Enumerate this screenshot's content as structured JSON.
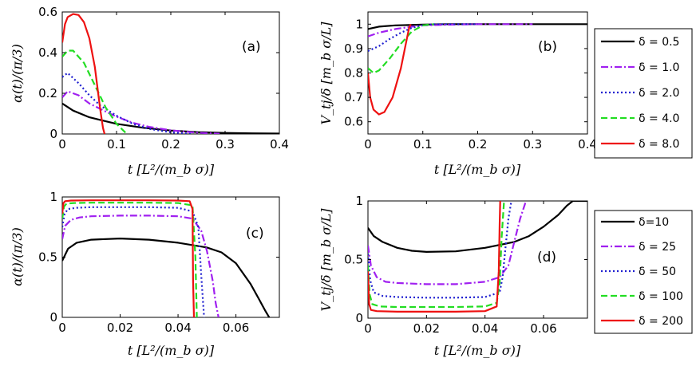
{
  "chart_data": [
    {
      "panel": "(a)",
      "type": "line",
      "xlabel": "t   [L²/(m_b σ)]",
      "ylabel": "α(t)/(π/3)",
      "xlim": [
        0,
        0.4
      ],
      "ylim": [
        0,
        0.6
      ],
      "xticks": [
        0,
        0.1,
        0.2,
        0.3,
        0.4
      ],
      "xtick_labels": [
        "0",
        "0.1",
        "0.2",
        "0.3",
        "0.4"
      ],
      "yticks": [
        0,
        0.2,
        0.4,
        0.6
      ],
      "ytick_labels": [
        "0",
        "0.2",
        "0.4",
        "0.6"
      ],
      "series": [
        {
          "name": "δ = 0.5",
          "color": "#000000",
          "dash": "",
          "x": [
            0,
            0.02,
            0.05,
            0.1,
            0.15,
            0.2,
            0.25,
            0.3,
            0.35,
            0.4
          ],
          "y": [
            0.15,
            0.115,
            0.082,
            0.05,
            0.03,
            0.017,
            0.009,
            0.005,
            0.003,
            0.002
          ]
        },
        {
          "name": "δ = 1.0",
          "color": "#a020f0",
          "dash": "9,3,2,3",
          "x": [
            0,
            0.01,
            0.03,
            0.05,
            0.08,
            0.1,
            0.13,
            0.16,
            0.2,
            0.25,
            0.29
          ],
          "y": [
            0.18,
            0.21,
            0.19,
            0.15,
            0.11,
            0.085,
            0.055,
            0.035,
            0.018,
            0.006,
            0.001
          ]
        },
        {
          "name": "δ = 2.0",
          "color": "#1f1fd0",
          "dash": "2,3",
          "x": [
            0,
            0.01,
            0.03,
            0.05,
            0.07,
            0.1,
            0.13,
            0.16,
            0.2,
            0.24
          ],
          "y": [
            0.28,
            0.3,
            0.25,
            0.19,
            0.14,
            0.09,
            0.05,
            0.025,
            0.008,
            0.0
          ]
        },
        {
          "name": "δ = 4.0",
          "color": "#22dd22",
          "dash": "8,4",
          "x": [
            0,
            0.01,
            0.02,
            0.04,
            0.06,
            0.08,
            0.1,
            0.115,
            0.12
          ],
          "y": [
            0.38,
            0.41,
            0.41,
            0.35,
            0.24,
            0.13,
            0.05,
            0.01,
            0.0
          ]
        },
        {
          "name": "δ = 8.0",
          "color": "#ee1111",
          "dash": "",
          "x": [
            0,
            0.005,
            0.01,
            0.02,
            0.03,
            0.04,
            0.05,
            0.06,
            0.07,
            0.075,
            0.078
          ],
          "y": [
            0.45,
            0.54,
            0.575,
            0.59,
            0.585,
            0.55,
            0.47,
            0.33,
            0.12,
            0.03,
            0.0
          ]
        }
      ]
    },
    {
      "panel": "(b)",
      "type": "line",
      "xlabel": "t   [L²/(m_b σ)]",
      "ylabel": "V_tj/δ   [m_b σ/L]",
      "xlim": [
        0,
        0.4
      ],
      "ylim": [
        0.55,
        1.05
      ],
      "xticks": [
        0,
        0.1,
        0.2,
        0.3,
        0.4
      ],
      "xtick_labels": [
        "0",
        "0.1",
        "0.2",
        "0.3",
        "0.4"
      ],
      "yticks": [
        0.6,
        0.7,
        0.8,
        0.9,
        1.0
      ],
      "ytick_labels": [
        "0.6",
        "0.7",
        "0.8",
        "0.9",
        "1"
      ],
      "series": [
        {
          "name": "δ = 0.5",
          "color": "#000000",
          "dash": "",
          "x": [
            0,
            0.02,
            0.05,
            0.1,
            0.15,
            0.2,
            0.4
          ],
          "y": [
            0.98,
            0.99,
            0.995,
            0.998,
            1.0,
            1.0,
            1.0
          ]
        },
        {
          "name": "δ = 1.0",
          "color": "#a020f0",
          "dash": "9,3,2,3",
          "x": [
            0,
            0.02,
            0.05,
            0.08,
            0.1,
            0.15,
            0.2,
            0.3
          ],
          "y": [
            0.95,
            0.965,
            0.98,
            0.99,
            0.995,
            0.998,
            1.0,
            1.0
          ]
        },
        {
          "name": "δ = 2.0",
          "color": "#1f1fd0",
          "dash": "2,3",
          "x": [
            0,
            0.02,
            0.04,
            0.06,
            0.08,
            0.1,
            0.12,
            0.2
          ],
          "y": [
            0.89,
            0.91,
            0.94,
            0.965,
            0.985,
            0.995,
            1.0,
            1.0
          ]
        },
        {
          "name": "δ = 4.0",
          "color": "#22dd22",
          "dash": "8,4",
          "x": [
            0,
            0.01,
            0.02,
            0.04,
            0.06,
            0.08,
            0.1,
            0.12
          ],
          "y": [
            0.82,
            0.8,
            0.81,
            0.86,
            0.92,
            0.97,
            0.995,
            1.0
          ]
        },
        {
          "name": "δ = 8.0",
          "color": "#ee1111",
          "dash": "",
          "x": [
            0,
            0.004,
            0.01,
            0.02,
            0.03,
            0.045,
            0.06,
            0.07,
            0.075,
            0.078
          ],
          "y": [
            0.8,
            0.7,
            0.65,
            0.63,
            0.64,
            0.7,
            0.82,
            0.93,
            0.985,
            1.0
          ]
        }
      ]
    },
    {
      "panel": "(c)",
      "type": "line",
      "xlabel": "t   [L²/(m_b σ)]",
      "ylabel": "α(t)/(π/3)",
      "xlim": [
        0,
        0.075
      ],
      "ylim": [
        0,
        1.0
      ],
      "xticks": [
        0,
        0.02,
        0.04,
        0.06
      ],
      "xtick_labels": [
        "0",
        "0.02",
        "0.04",
        "0.06"
      ],
      "yticks": [
        0,
        0.5,
        1.0
      ],
      "ytick_labels": [
        "0",
        "0.5",
        "1"
      ],
      "series": [
        {
          "name": "δ=10",
          "color": "#000000",
          "dash": "",
          "x": [
            0,
            0.002,
            0.005,
            0.01,
            0.02,
            0.03,
            0.04,
            0.05,
            0.055,
            0.06,
            0.065,
            0.068,
            0.07,
            0.0715
          ],
          "y": [
            0.47,
            0.57,
            0.62,
            0.645,
            0.655,
            0.645,
            0.62,
            0.58,
            0.54,
            0.45,
            0.28,
            0.15,
            0.06,
            0.0
          ]
        },
        {
          "name": "δ = 25",
          "color": "#a020f0",
          "dash": "9,3,2,3",
          "x": [
            0,
            0.001,
            0.003,
            0.006,
            0.01,
            0.02,
            0.03,
            0.04,
            0.045,
            0.048,
            0.05,
            0.052,
            0.053,
            0.054
          ],
          "y": [
            0.65,
            0.76,
            0.81,
            0.83,
            0.84,
            0.845,
            0.845,
            0.84,
            0.82,
            0.72,
            0.55,
            0.3,
            0.12,
            0.0
          ]
        },
        {
          "name": "δ = 50",
          "color": "#1f1fd0",
          "dash": "2,3",
          "x": [
            0,
            0.0008,
            0.002,
            0.005,
            0.01,
            0.02,
            0.03,
            0.04,
            0.045,
            0.047,
            0.048,
            0.049
          ],
          "y": [
            0.75,
            0.86,
            0.9,
            0.91,
            0.915,
            0.915,
            0.915,
            0.91,
            0.88,
            0.75,
            0.35,
            0.0
          ]
        },
        {
          "name": "δ = 100",
          "color": "#22dd22",
          "dash": "8,4",
          "x": [
            0,
            0.0006,
            0.0015,
            0.004,
            0.01,
            0.02,
            0.03,
            0.04,
            0.045,
            0.046,
            0.0465
          ],
          "y": [
            0.82,
            0.92,
            0.945,
            0.95,
            0.952,
            0.952,
            0.952,
            0.95,
            0.93,
            0.5,
            0.0
          ]
        },
        {
          "name": "δ = 200",
          "color": "#ee1111",
          "dash": "",
          "x": [
            0,
            0.0004,
            0.001,
            0.003,
            0.01,
            0.02,
            0.03,
            0.04,
            0.044,
            0.045,
            0.0452,
            0.0455
          ],
          "y": [
            0.86,
            0.95,
            0.965,
            0.97,
            0.972,
            0.972,
            0.972,
            0.97,
            0.965,
            0.9,
            0.3,
            0.0
          ]
        }
      ]
    },
    {
      "panel": "(d)",
      "type": "line",
      "xlabel": "t   [L²/(m_b σ)]",
      "ylabel": "V_tj/δ   [m_b σ/L]",
      "xlim": [
        0,
        0.075
      ],
      "ylim": [
        0,
        1.0
      ],
      "xticks": [
        0,
        0.02,
        0.04,
        0.06
      ],
      "xtick_labels": [
        "0",
        "0.02",
        "0.04",
        "0.06"
      ],
      "yticks": [
        0,
        0.5,
        1.0
      ],
      "ytick_labels": [
        "0",
        "0.5",
        "1"
      ],
      "series": [
        {
          "name": "δ=10",
          "color": "#000000",
          "dash": "",
          "x": [
            0,
            0.002,
            0.005,
            0.01,
            0.015,
            0.02,
            0.03,
            0.04,
            0.05,
            0.055,
            0.06,
            0.065,
            0.068,
            0.07,
            0.075
          ],
          "y": [
            0.77,
            0.7,
            0.65,
            0.6,
            0.575,
            0.565,
            0.57,
            0.6,
            0.65,
            0.7,
            0.78,
            0.88,
            0.96,
            1.0,
            1.0
          ]
        },
        {
          "name": "δ = 25",
          "color": "#a020f0",
          "dash": "9,3,2,3",
          "x": [
            0,
            0.001,
            0.003,
            0.006,
            0.01,
            0.02,
            0.03,
            0.04,
            0.045,
            0.048,
            0.05,
            0.052,
            0.054
          ],
          "y": [
            0.62,
            0.45,
            0.35,
            0.31,
            0.3,
            0.29,
            0.29,
            0.31,
            0.35,
            0.45,
            0.65,
            0.85,
            1.0
          ]
        },
        {
          "name": "δ = 50",
          "color": "#1f1fd0",
          "dash": "2,3",
          "x": [
            0,
            0.0008,
            0.002,
            0.005,
            0.01,
            0.02,
            0.03,
            0.04,
            0.045,
            0.046,
            0.047,
            0.048,
            0.049
          ],
          "y": [
            0.55,
            0.32,
            0.22,
            0.19,
            0.18,
            0.175,
            0.175,
            0.18,
            0.22,
            0.35,
            0.6,
            0.85,
            1.0
          ]
        },
        {
          "name": "δ = 100",
          "color": "#22dd22",
          "dash": "8,4",
          "x": [
            0,
            0.0006,
            0.0015,
            0.004,
            0.01,
            0.02,
            0.03,
            0.04,
            0.044,
            0.045,
            0.0457,
            0.0465
          ],
          "y": [
            0.45,
            0.2,
            0.12,
            0.1,
            0.095,
            0.095,
            0.095,
            0.1,
            0.13,
            0.3,
            0.7,
            1.0
          ]
        },
        {
          "name": "δ = 200",
          "color": "#ee1111",
          "dash": "",
          "x": [
            0,
            0.0004,
            0.001,
            0.003,
            0.01,
            0.02,
            0.03,
            0.04,
            0.044,
            0.0447,
            0.045,
            0.0452
          ],
          "y": [
            0.4,
            0.12,
            0.07,
            0.06,
            0.055,
            0.055,
            0.055,
            0.06,
            0.1,
            0.4,
            0.8,
            1.0
          ]
        }
      ]
    }
  ],
  "legend_top": [
    "δ = 0.5",
    "δ = 1.0",
    "δ = 2.0",
    "δ = 4.0",
    "δ = 8.0"
  ],
  "legend_bottom": [
    "δ=10",
    "δ = 25",
    "δ = 50",
    "δ = 100",
    "δ = 200"
  ]
}
